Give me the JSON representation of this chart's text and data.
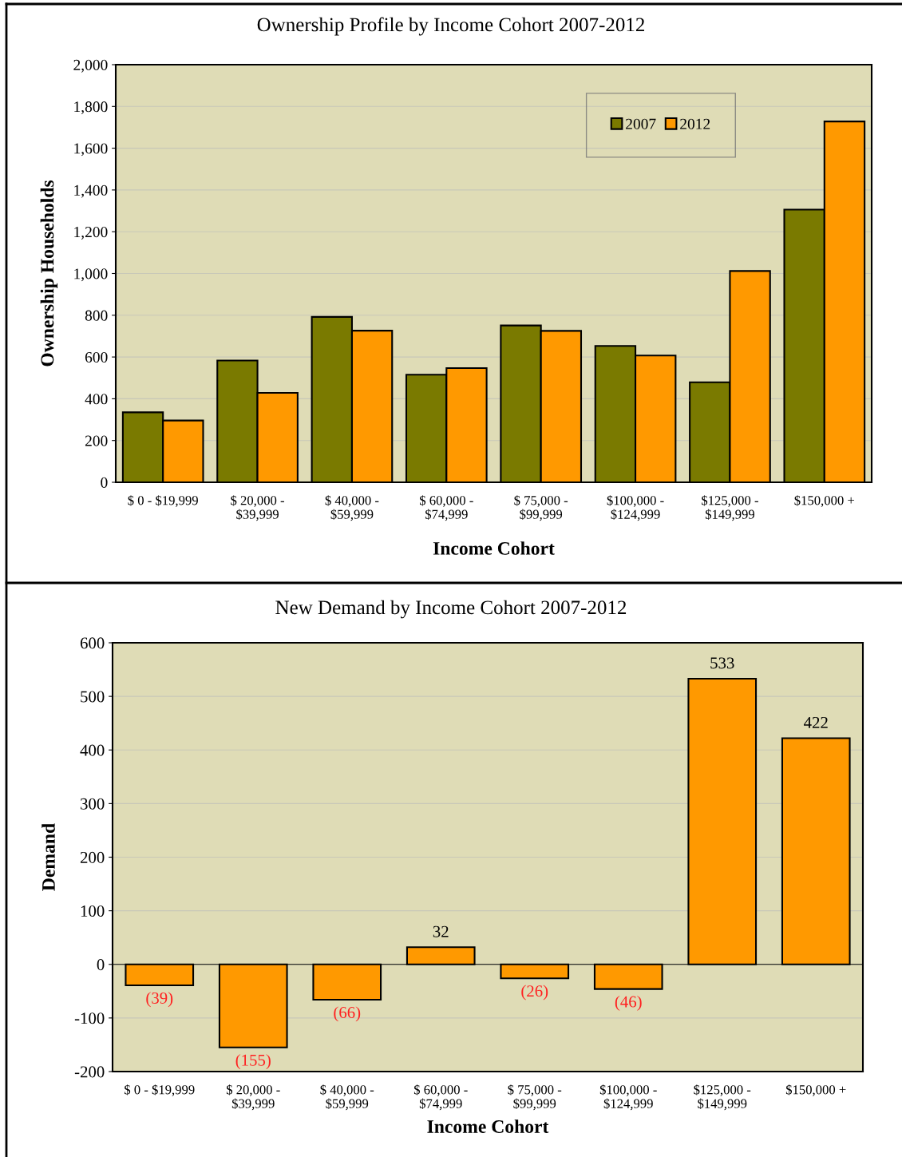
{
  "chart_data": [
    {
      "type": "bar",
      "title": "Ownership Profile by Income Cohort 2007-2012",
      "xlabel": "Income Cohort",
      "ylabel": "Ownership Households",
      "categories": [
        "$ 0 - $19,999",
        "$ 20,000 -\n$39,999",
        "$ 40,000 -\n$59,999",
        "$ 60,000 -\n$74,999",
        "$ 75,000 -\n$99,999",
        "$100,000 -\n$124,999",
        "$125,000 -\n$149,999",
        "$150,000 +"
      ],
      "series": [
        {
          "name": "2007",
          "color": "#7a7a00",
          "values": [
            335,
            583,
            792,
            515,
            751,
            653,
            479,
            1306
          ]
        },
        {
          "name": "2012",
          "color": "#ff9900",
          "values": [
            296,
            428,
            726,
            547,
            725,
            607,
            1012,
            1728
          ]
        }
      ],
      "ylim": [
        0,
        2000
      ],
      "yticks": [
        0,
        {
          "value": 200,
          "label": "200"
        },
        {
          "value": 400,
          "label": "400"
        },
        {
          "value": 600,
          "label": "600"
        },
        {
          "value": 800,
          "label": "800"
        },
        {
          "value": 1000,
          "label": "1,000"
        },
        {
          "value": 1200,
          "label": "1,200"
        },
        {
          "value": 1400,
          "label": "1,400"
        },
        {
          "value": 1600,
          "label": "1,600"
        },
        {
          "value": 1800,
          "label": "1,800"
        },
        {
          "value": 2000,
          "label": "2,000"
        }
      ],
      "grid": "y",
      "legend": "top right"
    },
    {
      "type": "bar",
      "title": "New Demand by Income Cohort 2007-2012",
      "xlabel": "Income Cohort",
      "ylabel": "Demand",
      "categories": [
        "$ 0 - $19,999",
        "$ 20,000 -\n$39,999",
        "$ 40,000 -\n$59,999",
        "$ 60,000 -\n$74,999",
        "$ 75,000 -\n$99,999",
        "$100,000 -\n$124,999",
        "$125,000 -\n$149,999",
        "$150,000 +"
      ],
      "values": [
        -39,
        -155,
        -66,
        32,
        -26,
        -46,
        533,
        422
      ],
      "color": "#ff9900",
      "value_labels": [
        "(39)",
        "(155)",
        "(66)",
        "32",
        "(26)",
        "(46)",
        "533",
        "422"
      ],
      "ylim": [
        -200,
        600
      ],
      "yticks": [
        -200,
        -100,
        0,
        100,
        200,
        300,
        400,
        500,
        600
      ],
      "grid": "y",
      "legend": false
    }
  ]
}
